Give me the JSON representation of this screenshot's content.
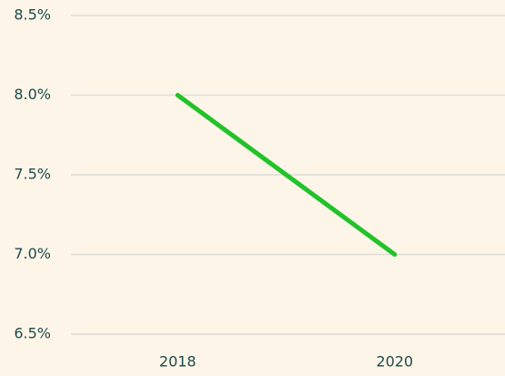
{
  "chart_data": {
    "type": "line",
    "categories": [
      "2018",
      "2020"
    ],
    "values": [
      8.0,
      7.0
    ],
    "color": "#22c22a",
    "ylim": [
      6.5,
      8.5
    ],
    "yticks": [
      {
        "value": 6.5,
        "label": "6.5%"
      },
      {
        "value": 7.0,
        "label": "7.0%"
      },
      {
        "value": 7.5,
        "label": "7.5%"
      },
      {
        "value": 8.0,
        "label": "8.0%"
      },
      {
        "value": 8.5,
        "label": "8.5%"
      }
    ],
    "grid": true
  }
}
